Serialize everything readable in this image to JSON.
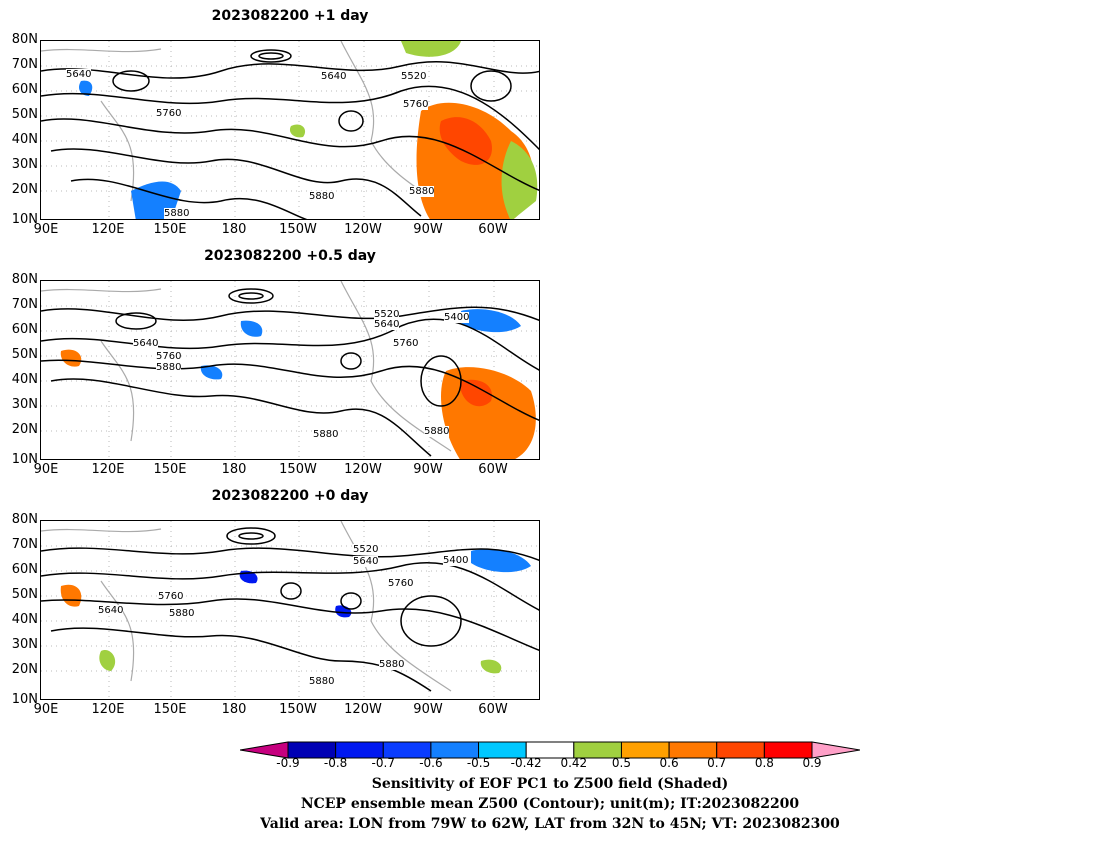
{
  "panels": [
    {
      "title": "2023082200  +1 day",
      "lead": "+1 day"
    },
    {
      "title": "2023082200  +0.5 day",
      "lead": "+0.5 day"
    },
    {
      "title": "2023082200  +0 day",
      "lead": "+0 day"
    }
  ],
  "axes": {
    "lat_labels": [
      "80N",
      "70N",
      "60N",
      "50N",
      "40N",
      "30N",
      "20N",
      "10N"
    ],
    "lon_labels": [
      "90E",
      "120E",
      "150E",
      "180",
      "150W",
      "120W",
      "90W",
      "60W"
    ]
  },
  "contour_labels": {
    "p0": [
      "5640",
      "5640",
      "5520",
      "5760",
      "5760",
      "5880",
      "5880",
      "5880"
    ],
    "p1": [
      "5640",
      "5760",
      "5880",
      "5520",
      "5640",
      "5400",
      "5760",
      "5880",
      "5880"
    ],
    "p2": [
      "5520",
      "5640",
      "5400",
      "5760",
      "5640",
      "5760",
      "5880",
      "5880",
      "5880"
    ]
  },
  "colorbar": {
    "ticks": [
      "-0.9",
      "-0.8",
      "-0.7",
      "-0.6",
      "-0.5",
      "-0.42",
      "0.42",
      "0.5",
      "0.6",
      "0.7",
      "0.8",
      "0.9"
    ],
    "colors": [
      "#c6007f",
      "#0000b4",
      "#0018f0",
      "#0a3cff",
      "#1480ff",
      "#00c8ff",
      "#ffffff",
      "#a0d040",
      "#ffa000",
      "#ff7800",
      "#ff4600",
      "#ff0000",
      "#ffa0c8"
    ]
  },
  "captions": [
    "Sensitivity of EOF PC1 to Z500 field (Shaded)",
    "NCEP ensemble mean Z500 (Contour); unit(m); IT:2023082200",
    "Valid area: LON from 79W to 62W, LAT from 32N to 45N; VT: 2023082300"
  ]
}
